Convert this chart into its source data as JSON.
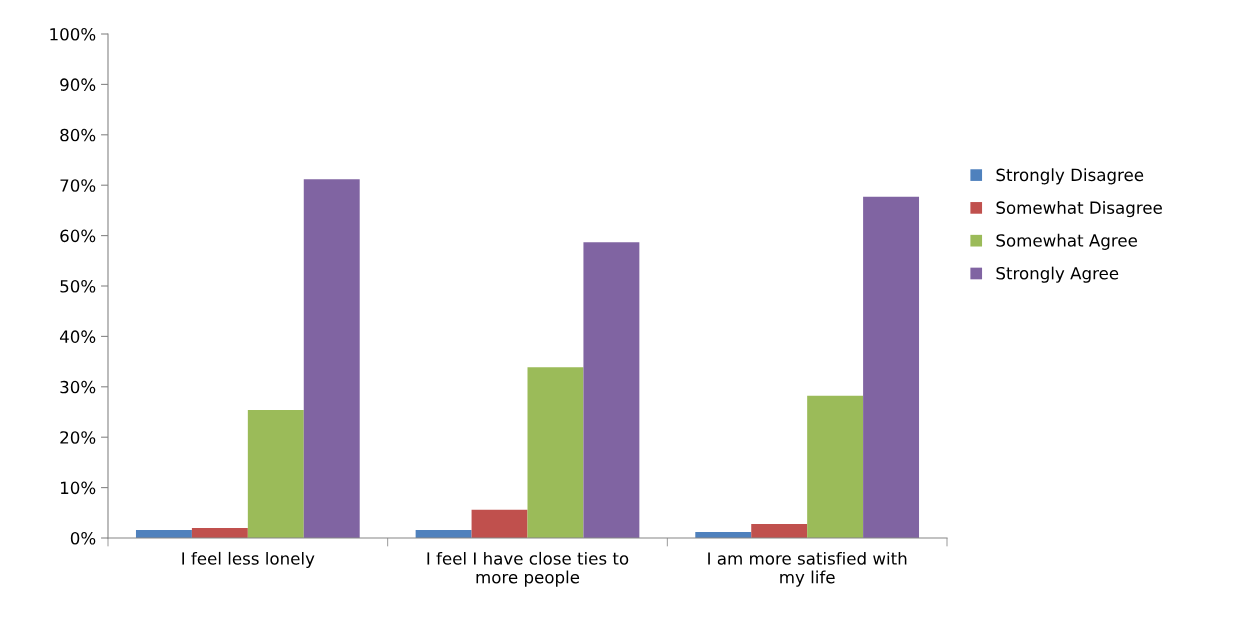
{
  "chart_data": {
    "type": "bar",
    "categories": [
      "I feel less lonely",
      "I feel I have close ties to\nmore people",
      "I am more satisfied with\nmy life"
    ],
    "series": [
      {
        "name": "Strongly Disagree",
        "color": "#4f81bd",
        "values": [
          1.6,
          1.6,
          1.2
        ]
      },
      {
        "name": "Somewhat Disagree",
        "color": "#c0504d",
        "values": [
          2.0,
          5.6,
          2.8
        ]
      },
      {
        "name": "Somewhat Agree",
        "color": "#9bbb59",
        "values": [
          25.4,
          33.9,
          28.2
        ]
      },
      {
        "name": "Strongly Agree",
        "color": "#8064a2",
        "values": [
          71.2,
          58.7,
          67.7
        ]
      }
    ],
    "ylim": [
      0,
      100
    ],
    "yticks": [
      {
        "value": 0,
        "label": "0%"
      },
      {
        "value": 10,
        "label": "10%"
      },
      {
        "value": 20,
        "label": "20%"
      },
      {
        "value": 30,
        "label": "30%"
      },
      {
        "value": 40,
        "label": "40%"
      },
      {
        "value": 50,
        "label": "50%"
      },
      {
        "value": 60,
        "label": "60%"
      },
      {
        "value": 70,
        "label": "70%"
      },
      {
        "value": 80,
        "label": "80%"
      },
      {
        "value": 90,
        "label": "90%"
      },
      {
        "value": 100,
        "label": "100%"
      }
    ],
    "grid": false,
    "legend": "right"
  }
}
